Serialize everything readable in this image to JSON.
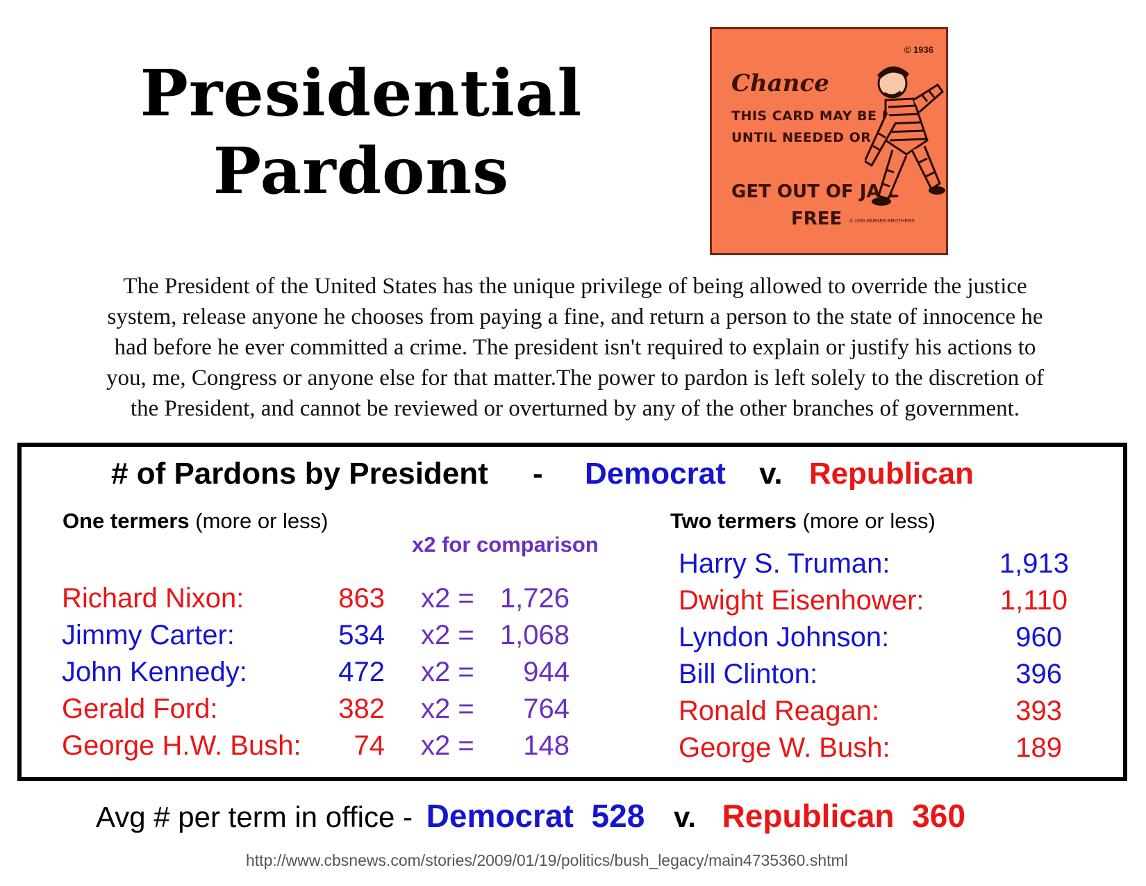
{
  "title": {
    "line1": "Presidential",
    "line2": "Pardons"
  },
  "card": {
    "copyright": "© 1936",
    "heading": "Chance",
    "line1": "THIS CARD MAY BE KEPT",
    "line2": "UNTIL NEEDED OR SOLD",
    "line3": "GET OUT OF JAIL",
    "line4": "FREE",
    "fine_print": "© 1936 PARKER BROTHERS",
    "card_color": "#f6794f"
  },
  "intro": {
    "lines": [
      "The President of the United States has the unique privilege of being allowed to override the justice",
      "system, release anyone he chooses from paying a fine, and return a person to the state of innocence he",
      "had before he ever committed a crime. The president isn't required to explain or justify his actions to",
      "you, me, Congress or anyone else for that matter.The power to pardon is left solely to the discretion of",
      "the President, and cannot be reviewed or overturned by any of the other branches of government."
    ]
  },
  "table": {
    "title": "# of Pardons by President",
    "dash": "-",
    "dem_label": "Democrat",
    "vs": "v.",
    "rep_label": "Republican",
    "one_termers": {
      "heading_bold": "One termers",
      "heading_rest": "(more or less)",
      "comparison_note": "x2 for comparison",
      "rows": [
        {
          "name": "Richard Nixon:",
          "count": "863",
          "x2_prefix": "x2 =",
          "x2_value": "1,726",
          "party": "rep"
        },
        {
          "name": "Jimmy Carter:",
          "count": "534",
          "x2_prefix": "x2 =",
          "x2_value": "1,068",
          "party": "dem"
        },
        {
          "name": "John Kennedy:",
          "count": "472",
          "x2_prefix": "x2 =",
          "x2_value": "944",
          "party": "dem"
        },
        {
          "name": "Gerald Ford:",
          "count": "382",
          "x2_prefix": "x2 =",
          "x2_value": "764",
          "party": "rep"
        },
        {
          "name": "George H.W. Bush:",
          "count": "74",
          "x2_prefix": "x2 =",
          "x2_value": "148",
          "party": "rep"
        }
      ]
    },
    "two_termers": {
      "heading_bold": "Two termers",
      "heading_rest": "(more or less)",
      "rows": [
        {
          "name": "Harry S. Truman:",
          "count": "1,913",
          "party": "dem"
        },
        {
          "name": "Dwight Eisenhower:",
          "count": "1,110",
          "party": "rep"
        },
        {
          "name": "Lyndon Johnson:",
          "count": "960",
          "party": "dem"
        },
        {
          "name": "Bill Clinton:",
          "count": "396",
          "party": "dem"
        },
        {
          "name": "Ronald Reagan:",
          "count": "393",
          "party": "rep"
        },
        {
          "name": "George W. Bush:",
          "count": "189",
          "party": "rep"
        }
      ]
    }
  },
  "average": {
    "label": "Avg # per term in office -",
    "dem_label": "Democrat",
    "dem_value": "528",
    "vs": "v.",
    "rep_label": "Republican",
    "rep_value": "360"
  },
  "source_url": "http://www.cbsnews.com/stories/2009/01/19/politics/bush_legacy/main4735360.shtml",
  "colors": {
    "democrat": "#1414d2",
    "republican": "#ea1515",
    "comparison": "#6a2fc2"
  }
}
